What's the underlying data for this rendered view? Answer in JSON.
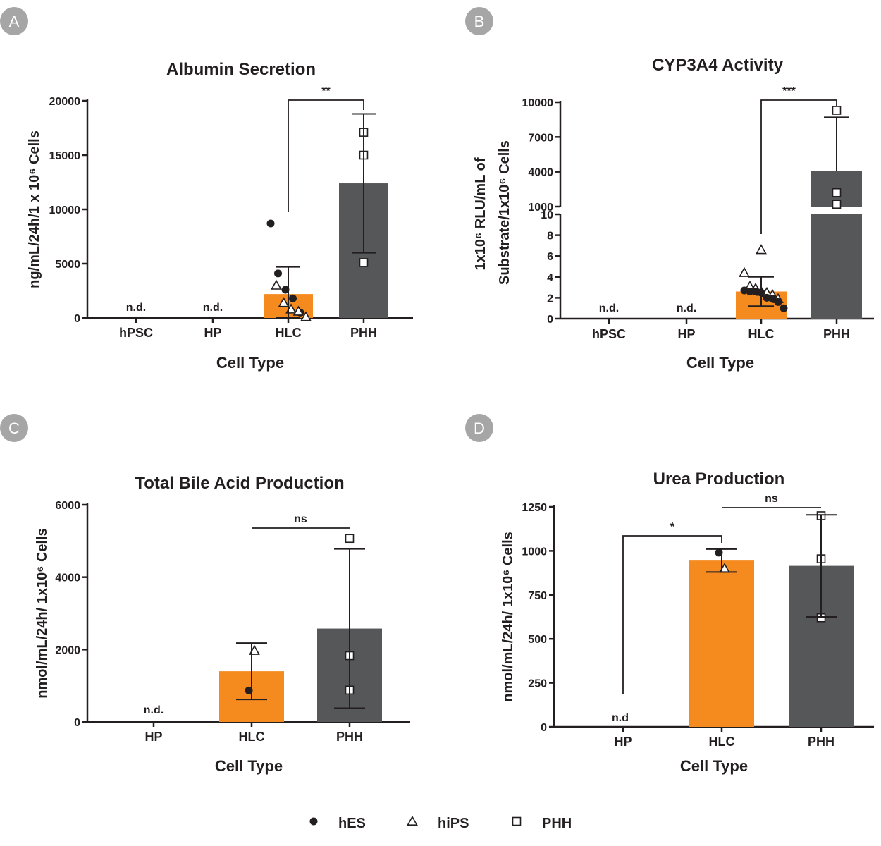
{
  "colors": {
    "hlc": "#f58a1f",
    "phh": "#555759",
    "ink": "#231f20",
    "badge": "#a6a6a6"
  },
  "legend": [
    {
      "label": "hES",
      "marker": "circle"
    },
    {
      "label": "hiPS",
      "marker": "triangle"
    },
    {
      "label": "PHH",
      "marker": "square"
    }
  ],
  "chart_data": [
    {
      "panel": "A",
      "type": "bar",
      "title": "Albumin Secretion",
      "xlabel": "Cell Type",
      "ylabel": "ng/mL/24h/1 x 10⁶ Cells",
      "ylim": [
        0,
        20000
      ],
      "yticks": [
        "0",
        "5000",
        "10000",
        "15000",
        "20000"
      ],
      "categories": [
        "hPSC",
        "HP",
        "HLC",
        "PHH"
      ],
      "values": [
        null,
        null,
        2200,
        12400
      ],
      "error": [
        null,
        null,
        2500,
        6400
      ],
      "not_detected_label": "n.d.",
      "not_detected": [
        true,
        true,
        false,
        false
      ],
      "points": {
        "HLC": {
          "hES": [
            8700,
            4100,
            2600,
            1800,
            500
          ],
          "hiPS": [
            3000,
            1400,
            800,
            600,
            100
          ]
        },
        "PHH": {
          "PHH": [
            17100,
            15000,
            5100
          ]
        }
      },
      "comparisons": [
        {
          "from": "HLC",
          "to": "PHH",
          "label": "**"
        }
      ]
    },
    {
      "panel": "B",
      "type": "bar",
      "title": "CYP3A4 Activity",
      "xlabel": "Cell Type",
      "ylabel_line1": "1x10⁶ RLU/mL of",
      "ylabel_line2": "Substrate/1x10⁶ Cells",
      "broken_axis": true,
      "ylim_lower": [
        0,
        10
      ],
      "yticks_lower": [
        "0",
        "2",
        "4",
        "6",
        "8",
        "10"
      ],
      "ylim_upper": [
        1000,
        10000
      ],
      "yticks_upper": [
        "1000",
        "4000",
        "7000",
        "10000"
      ],
      "categories": [
        "hPSC",
        "HP",
        "HLC",
        "PHH"
      ],
      "values": [
        null,
        null,
        2.6,
        4100
      ],
      "error": [
        null,
        null,
        1.4,
        4600
      ],
      "not_detected_label": "n.d.",
      "not_detected": [
        true,
        true,
        false,
        false
      ],
      "points": {
        "HLC": {
          "hES": [
            2.7,
            2.6,
            2.6,
            2.5,
            2.0,
            1.9,
            1.6,
            1.0
          ],
          "hiPS": [
            6.6,
            4.4,
            3.1,
            2.9,
            2.6,
            2.5,
            2.3,
            1.9
          ]
        },
        "PHH": {
          "PHH": [
            9300,
            2200,
            1200
          ]
        }
      },
      "comparisons": [
        {
          "from": "HLC",
          "to": "PHH",
          "label": "***"
        }
      ]
    },
    {
      "panel": "C",
      "type": "bar",
      "title": "Total Bile Acid Production",
      "xlabel": "Cell Type",
      "ylabel": "nmol/mL/24h/ 1x10⁶ Cells",
      "ylim": [
        0,
        6000
      ],
      "yticks": [
        "0",
        "2000",
        "4000",
        "6000"
      ],
      "categories": [
        "HP",
        "HLC",
        "PHH"
      ],
      "values": [
        null,
        1400,
        2580
      ],
      "error": [
        null,
        780,
        2200
      ],
      "not_detected_label": "n.d.",
      "not_detected": [
        true,
        false,
        false
      ],
      "points": {
        "HLC": {
          "hES": [
            870
          ],
          "hiPS": [
            1970
          ]
        },
        "PHH": {
          "PHH": [
            5070,
            1830,
            880
          ]
        }
      },
      "comparisons": [
        {
          "from": "HLC",
          "to": "PHH",
          "label": "ns"
        }
      ]
    },
    {
      "panel": "D",
      "type": "bar",
      "title": "Urea Production",
      "xlabel": "Cell Type",
      "ylabel": "nmol/mL/24h/ 1x10⁶ Cells",
      "ylim": [
        0,
        1250
      ],
      "yticks": [
        "0",
        "250",
        "500",
        "750",
        "1000",
        "1250"
      ],
      "categories": [
        "HP",
        "HLC",
        "PHH"
      ],
      "values": [
        null,
        945,
        915
      ],
      "error": [
        null,
        65,
        290
      ],
      "not_detected_label": "n.d",
      "not_detected": [
        true,
        false,
        false
      ],
      "points": {
        "HLC": {
          "hES": [
            990
          ],
          "hiPS": [
            900
          ]
        },
        "PHH": {
          "PHH": [
            1200,
            955,
            620
          ]
        }
      },
      "comparisons": [
        {
          "from": "HP",
          "to": "HLC",
          "label": "*"
        },
        {
          "from": "HLC",
          "to": "PHH",
          "label": "ns"
        }
      ]
    }
  ]
}
